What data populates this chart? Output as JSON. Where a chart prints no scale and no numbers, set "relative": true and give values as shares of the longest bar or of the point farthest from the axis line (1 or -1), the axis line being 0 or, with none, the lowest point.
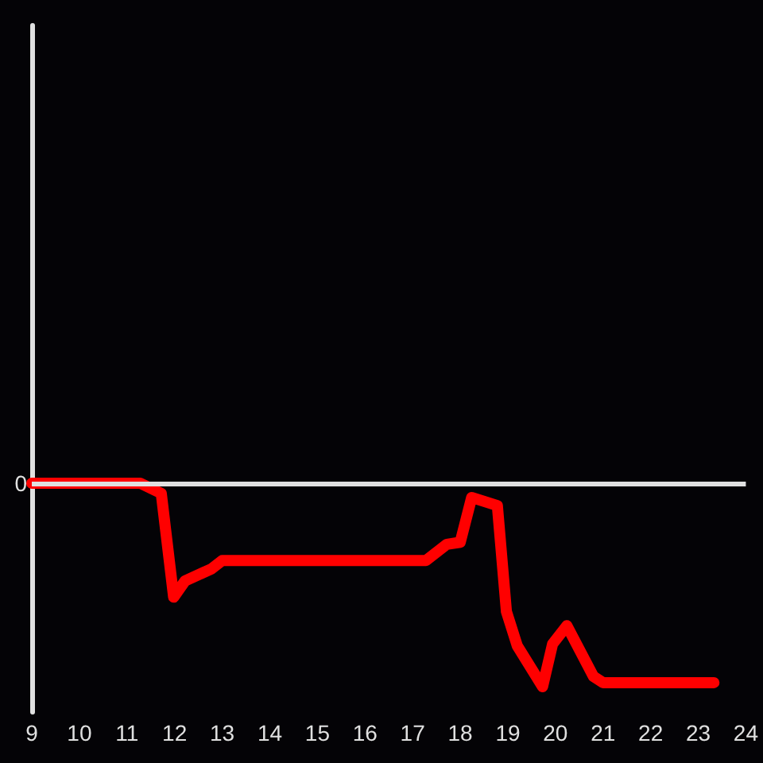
{
  "chart_data": {
    "type": "line",
    "relative": true,
    "x": [
      9,
      11.28,
      11.72,
      11.98,
      12.22,
      12.78,
      13.0,
      17.28,
      17.72,
      18.0,
      18.24,
      18.78,
      18.97,
      19.2,
      19.73,
      19.94,
      20.24,
      20.8,
      21.0,
      23.33
    ],
    "values": [
      0,
      0,
      -0.05,
      -0.56,
      -0.48,
      -0.42,
      -0.38,
      -0.38,
      -0.3,
      -0.29,
      -0.07,
      -0.11,
      -0.63,
      -0.8,
      -1,
      -0.79,
      -0.7,
      -0.95,
      -0.98,
      -0.98
    ],
    "color": "#ff0000",
    "xlim": [
      9,
      24
    ],
    "xticks": [
      9,
      10,
      11,
      12,
      13,
      14,
      15,
      16,
      17,
      18,
      19,
      20,
      21,
      22,
      23,
      24
    ],
    "marker": "none",
    "line_style": "solid",
    "ref_lines": [
      {
        "axis": "y",
        "value": 0,
        "label": "0",
        "color": "#e0e0e0"
      }
    ]
  }
}
